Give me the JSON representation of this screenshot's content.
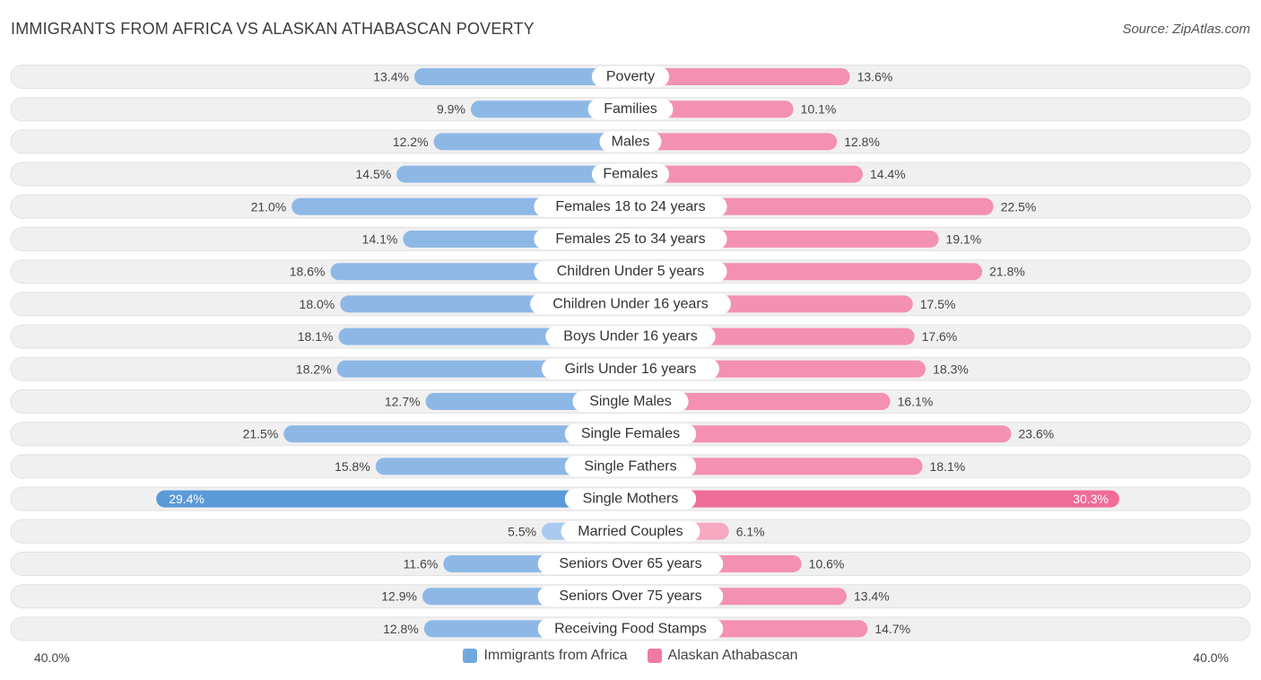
{
  "title": "IMMIGRANTS FROM AFRICA VS ALASKAN ATHABASCAN POVERTY",
  "source": "Source: ZipAtlas.com",
  "colors": {
    "left": "#6fa8e0",
    "left_light": "#a9c9ee",
    "right": "#f07aa0",
    "right_light": "#f6a9c1",
    "row_bg": "#f0f0f0"
  },
  "chart_data": {
    "type": "bar",
    "orientation": "horizontal-diverging",
    "title": "IMMIGRANTS FROM AFRICA VS ALASKAN ATHABASCAN POVERTY",
    "axis_max": 40.0,
    "axis_left_label": "40.0%",
    "axis_right_label": "40.0%",
    "categories": [
      "Poverty",
      "Families",
      "Males",
      "Females",
      "Females 18 to 24 years",
      "Females 25 to 34 years",
      "Children Under 5 years",
      "Children Under 16 years",
      "Boys Under 16 years",
      "Girls Under 16 years",
      "Single Males",
      "Single Females",
      "Single Fathers",
      "Single Mothers",
      "Married Couples",
      "Seniors Over 65 years",
      "Seniors Over 75 years",
      "Receiving Food Stamps"
    ],
    "series": [
      {
        "name": "Immigrants from Africa",
        "values": [
          13.4,
          9.9,
          12.2,
          14.5,
          21.0,
          14.1,
          18.6,
          18.0,
          18.1,
          18.2,
          12.7,
          21.5,
          15.8,
          29.4,
          5.5,
          11.6,
          12.9,
          12.8
        ],
        "labels": [
          "13.4%",
          "9.9%",
          "12.2%",
          "14.5%",
          "21.0%",
          "14.1%",
          "18.6%",
          "18.0%",
          "18.1%",
          "18.2%",
          "12.7%",
          "21.5%",
          "15.8%",
          "29.4%",
          "5.5%",
          "11.6%",
          "12.9%",
          "12.8%"
        ]
      },
      {
        "name": "Alaskan Athabascan",
        "values": [
          13.6,
          10.1,
          12.8,
          14.4,
          22.5,
          19.1,
          21.8,
          17.5,
          17.6,
          18.3,
          16.1,
          23.6,
          18.1,
          30.3,
          6.1,
          10.6,
          13.4,
          14.7
        ],
        "labels": [
          "13.6%",
          "10.1%",
          "12.8%",
          "14.4%",
          "22.5%",
          "19.1%",
          "21.8%",
          "17.5%",
          "17.6%",
          "18.3%",
          "16.1%",
          "23.6%",
          "18.1%",
          "30.3%",
          "6.1%",
          "10.6%",
          "13.4%",
          "14.7%"
        ]
      }
    ],
    "legend": [
      "Immigrants from Africa",
      "Alaskan Athabascan"
    ],
    "legend_position": "bottom-center"
  }
}
